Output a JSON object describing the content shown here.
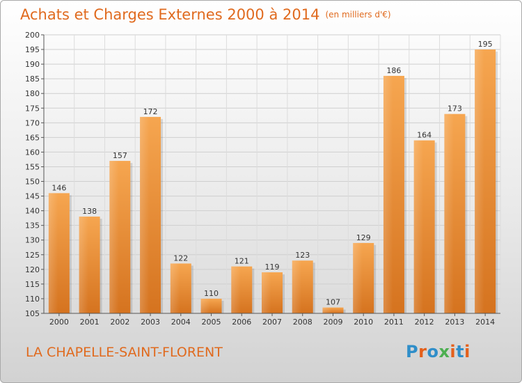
{
  "header": {
    "title": "Achats et Charges Externes 2000 à 2014",
    "subtitle": "(en milliers d'€)"
  },
  "footer": {
    "place": "LA CHAPELLE-SAINT-FLORENT",
    "logo_text": "Proxiti"
  },
  "colors": {
    "title": "#e06a1e",
    "bar_light": "#f6a650",
    "bar_dark": "#d5731f",
    "logo": [
      "#2f8ec9",
      "#e4601b",
      "#2f8ec9",
      "#4caf50",
      "#e4601b",
      "#2f8ec9",
      "#e4601b"
    ]
  },
  "chart_data": {
    "type": "bar",
    "title": "Achats et Charges Externes 2000 à 2014",
    "subtitle": "(en milliers d'€)",
    "xlabel": "",
    "ylabel": "",
    "categories": [
      "2000",
      "2001",
      "2002",
      "2003",
      "2004",
      "2005",
      "2006",
      "2007",
      "2008",
      "2009",
      "2010",
      "2011",
      "2012",
      "2013",
      "2014"
    ],
    "values": [
      146,
      138,
      157,
      172,
      122,
      110,
      121,
      119,
      123,
      107,
      129,
      186,
      164,
      173,
      195
    ],
    "ylim": [
      105,
      200
    ],
    "yticks": [
      105,
      110,
      115,
      120,
      125,
      130,
      135,
      140,
      145,
      150,
      155,
      160,
      165,
      170,
      175,
      180,
      185,
      190,
      195,
      200
    ],
    "grid": true,
    "data_labels": true
  }
}
